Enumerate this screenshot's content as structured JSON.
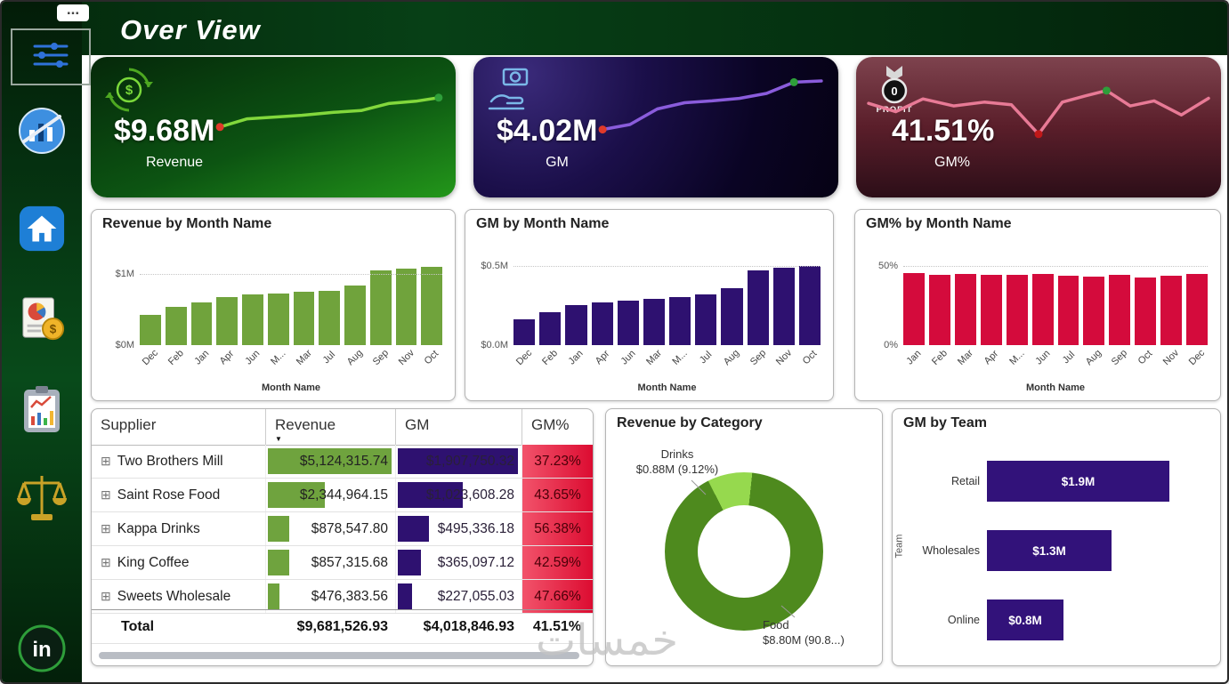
{
  "page": {
    "title": "Over View",
    "menu_dots": "...",
    "watermark": "خمسات"
  },
  "sidebar": {
    "icons": [
      "slicer",
      "powerbi-logo",
      "home",
      "finance-report",
      "clipboard-chart",
      "balance-scale",
      "linkedin"
    ],
    "linkedin_text": "in"
  },
  "kpis": [
    {
      "value": "$9.68M",
      "label": "Revenue",
      "spark": {
        "color": "#82d83c",
        "points": [
          [
            0.02,
            0.8
          ],
          [
            0.14,
            0.66
          ],
          [
            0.26,
            0.63
          ],
          [
            0.38,
            0.6
          ],
          [
            0.52,
            0.55
          ],
          [
            0.64,
            0.52
          ],
          [
            0.76,
            0.4
          ],
          [
            0.88,
            0.36
          ],
          [
            0.98,
            0.3
          ]
        ],
        "dots": [
          {
            "index": 0,
            "color": "#e03a2a"
          },
          {
            "index": 8,
            "color": "#2e9e3a"
          }
        ]
      }
    },
    {
      "value": "$4.02M",
      "label": "GM",
      "spark": {
        "color": "#8a5cdc",
        "points": [
          [
            0.02,
            0.88
          ],
          [
            0.14,
            0.8
          ],
          [
            0.26,
            0.55
          ],
          [
            0.38,
            0.45
          ],
          [
            0.5,
            0.42
          ],
          [
            0.62,
            0.38
          ],
          [
            0.74,
            0.3
          ],
          [
            0.86,
            0.12
          ],
          [
            0.98,
            0.1
          ]
        ],
        "dots": [
          {
            "index": 0,
            "color": "#e03a2a"
          },
          {
            "index": 7,
            "color": "#2e9e3a"
          }
        ]
      }
    },
    {
      "value": "41.51%",
      "label": "GM%",
      "icon_text": "PROFIT",
      "spark": {
        "color": "#e87a96",
        "points": [
          [
            0.0,
            0.42
          ],
          [
            0.08,
            0.55
          ],
          [
            0.16,
            0.35
          ],
          [
            0.25,
            0.46
          ],
          [
            0.34,
            0.4
          ],
          [
            0.42,
            0.44
          ],
          [
            0.5,
            0.9
          ],
          [
            0.57,
            0.4
          ],
          [
            0.64,
            0.3
          ],
          [
            0.7,
            0.22
          ],
          [
            0.77,
            0.46
          ],
          [
            0.84,
            0.38
          ],
          [
            0.92,
            0.6
          ],
          [
            1.0,
            0.34
          ]
        ],
        "dots": [
          {
            "index": 6,
            "color": "#c01818"
          },
          {
            "index": 9,
            "color": "#2e9e3a"
          }
        ]
      }
    }
  ],
  "chart_data": [
    {
      "type": "bar",
      "title": "Revenue by Month Name",
      "xlabel": "Month Name",
      "categories": [
        "Dec",
        "Feb",
        "Jan",
        "Apr",
        "Jun",
        "M...",
        "Mar",
        "Jul",
        "Aug",
        "Sep",
        "Nov",
        "Oct"
      ],
      "values": [
        0.42,
        0.54,
        0.6,
        0.67,
        0.71,
        0.73,
        0.75,
        0.76,
        0.84,
        1.05,
        1.08,
        1.1
      ],
      "ymax": 1.25,
      "yticks": [
        {
          "label": "$0M",
          "value": 0
        },
        {
          "label": "$1M",
          "value": 1
        }
      ],
      "bar_color": "#70a33c"
    },
    {
      "type": "bar",
      "title": "GM by Month Name",
      "xlabel": "Month Name",
      "categories": [
        "Dec",
        "Feb",
        "Jan",
        "Apr",
        "Jun",
        "Mar",
        "M...",
        "Jul",
        "Aug",
        "Sep",
        "Nov",
        "Oct"
      ],
      "values": [
        0.16,
        0.21,
        0.25,
        0.27,
        0.28,
        0.29,
        0.3,
        0.32,
        0.36,
        0.47,
        0.49,
        0.5
      ],
      "ymax": 0.56,
      "yticks": [
        {
          "label": "$0.0M",
          "value": 0
        },
        {
          "label": "$0.5M",
          "value": 0.5
        }
      ],
      "bar_color": "#2e1170"
    },
    {
      "type": "bar",
      "title": "GM% by Month Name",
      "xlabel": "Month Name",
      "categories": [
        "Jan",
        "Feb",
        "Mar",
        "Apr",
        "M...",
        "Jun",
        "Jul",
        "Aug",
        "Sep",
        "Oct",
        "Nov",
        "Dec"
      ],
      "values": [
        45.5,
        44.5,
        45,
        44.5,
        44,
        45,
        43.5,
        43,
        44,
        42.5,
        43.5,
        45
      ],
      "ymax": 56,
      "yticks": [
        {
          "label": "0%",
          "value": 0
        },
        {
          "label": "50%",
          "value": 50
        }
      ],
      "bar_color": "#d40b3c"
    },
    {
      "type": "table",
      "columns": [
        "Supplier",
        "Revenue",
        "GM",
        "GM%"
      ],
      "sort_indicator": "▼",
      "expand_glyph": "⊞",
      "rev_bar_color": "#6fa33e",
      "gm_bar_color": "#2e1170",
      "rows": [
        {
          "supplier": "Two Brothers Mill",
          "revenue": "$5,124,315.74",
          "gm": "$1,907,750.32",
          "gm_pct": "37.23%",
          "rev_bar": 1.0,
          "gm_bar": 1.0
        },
        {
          "supplier": "Saint Rose Food",
          "revenue": "$2,344,964.15",
          "gm": "$1,023,608.28",
          "gm_pct": "43.65%",
          "rev_bar": 0.46,
          "gm_bar": 0.54
        },
        {
          "supplier": "Kappa Drinks",
          "revenue": "$878,547.80",
          "gm": "$495,336.18",
          "gm_pct": "56.38%",
          "rev_bar": 0.17,
          "gm_bar": 0.26
        },
        {
          "supplier": "King Coffee",
          "revenue": "$857,315.68",
          "gm": "$365,097.12",
          "gm_pct": "42.59%",
          "rev_bar": 0.17,
          "gm_bar": 0.19
        },
        {
          "supplier": "Sweets Wholesale",
          "revenue": "$476,383.56",
          "gm": "$227,055.03",
          "gm_pct": "47.66%",
          "rev_bar": 0.09,
          "gm_bar": 0.12
        }
      ],
      "total": {
        "supplier": "Total",
        "revenue": "$9,681,526.93",
        "gm": "$4,018,846.93",
        "gm_pct": "41.51%"
      }
    },
    {
      "type": "pie",
      "title": "Revenue by Category",
      "slices": [
        {
          "label": "Food",
          "value_label": "$8.80M (90.8...)",
          "pct": 90.88,
          "color": "#4e8a1e"
        },
        {
          "label": "Drinks",
          "value_label": "$0.88M (9.12%)",
          "pct": 9.12,
          "color": "#96d94e"
        }
      ]
    },
    {
      "type": "bar-horizontal",
      "title": "GM by Team",
      "axis_label": "Team",
      "categories": [
        "Retail",
        "Wholesales",
        "Online"
      ],
      "values": [
        1.9,
        1.3,
        0.8
      ],
      "labels": [
        "$1.9M",
        "$1.3M",
        "$0.8M"
      ],
      "bar_color": "#32127a"
    }
  ]
}
